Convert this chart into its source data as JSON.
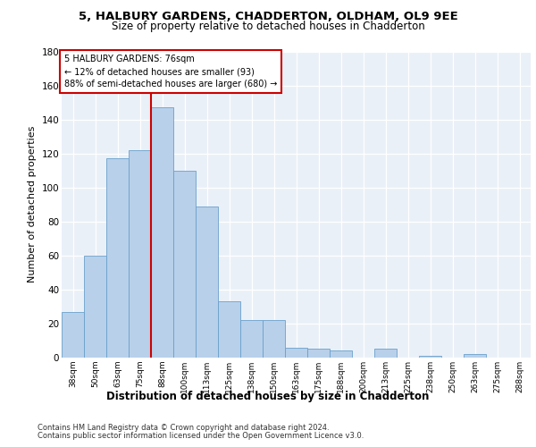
{
  "title1": "5, HALBURY GARDENS, CHADDERTON, OLDHAM, OL9 9EE",
  "title2": "Size of property relative to detached houses in Chadderton",
  "xlabel": "Distribution of detached houses by size in Chadderton",
  "ylabel": "Number of detached properties",
  "categories": [
    "38sqm",
    "50sqm",
    "63sqm",
    "75sqm",
    "88sqm",
    "100sqm",
    "113sqm",
    "125sqm",
    "138sqm",
    "150sqm",
    "163sqm",
    "175sqm",
    "188sqm",
    "200sqm",
    "213sqm",
    "225sqm",
    "238sqm",
    "250sqm",
    "263sqm",
    "275sqm",
    "288sqm"
  ],
  "values": [
    27,
    60,
    117,
    122,
    147,
    110,
    89,
    33,
    22,
    22,
    6,
    5,
    4,
    0,
    5,
    0,
    1,
    0,
    2,
    0,
    0
  ],
  "bar_color": "#b8d0ea",
  "bar_edge_color": "#6aa0cc",
  "highlight_line_color": "#cc0000",
  "annotation_line1": "5 HALBURY GARDENS: 76sqm",
  "annotation_line2": "← 12% of detached houses are smaller (93)",
  "annotation_line3": "88% of semi-detached houses are larger (680) →",
  "annotation_box_color": "#ffffff",
  "annotation_box_edge": "#cc0000",
  "ylim": [
    0,
    180
  ],
  "yticks": [
    0,
    20,
    40,
    60,
    80,
    100,
    120,
    140,
    160,
    180
  ],
  "footnote1": "Contains HM Land Registry data © Crown copyright and database right 2024.",
  "footnote2": "Contains public sector information licensed under the Open Government Licence v3.0.",
  "background_color": "#eaf0f8",
  "line_x_index": 3.5
}
